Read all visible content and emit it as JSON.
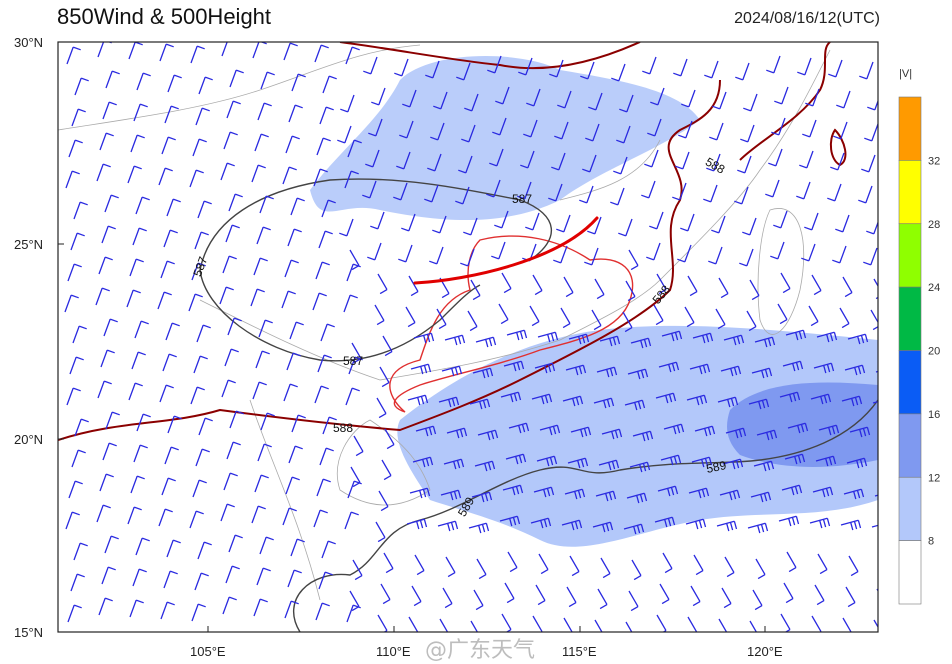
{
  "header": {
    "title": "850Wind & 500Height",
    "datetime": "2024/08/16/12(UTC)"
  },
  "axes": {
    "lat_labels": [
      "30°N",
      "25°N",
      "20°N",
      "15°N"
    ],
    "lon_labels": [
      "105°E",
      "110°E",
      "115°E",
      "120°E"
    ]
  },
  "contours": {
    "labels": [
      "587",
      "587",
      "587",
      "588",
      "588",
      "588",
      "589",
      "589"
    ],
    "color_587": "#444444",
    "color_588": "#8b0000",
    "color_589": "#444444"
  },
  "colorbar": {
    "title": "|V|",
    "levels": [
      "8",
      "12",
      "16",
      "20",
      "24",
      "28",
      "32"
    ],
    "colors": [
      "#ffffff",
      "#b3c8fa",
      "#7f99f0",
      "#0a5cf5",
      "#00b945",
      "#8fff00",
      "#ffff00",
      "#ff9a00"
    ]
  },
  "overlay": {
    "annotation_color": "#e00000",
    "barb_color": "#2a2ae0"
  },
  "watermark": "@广东天气"
}
